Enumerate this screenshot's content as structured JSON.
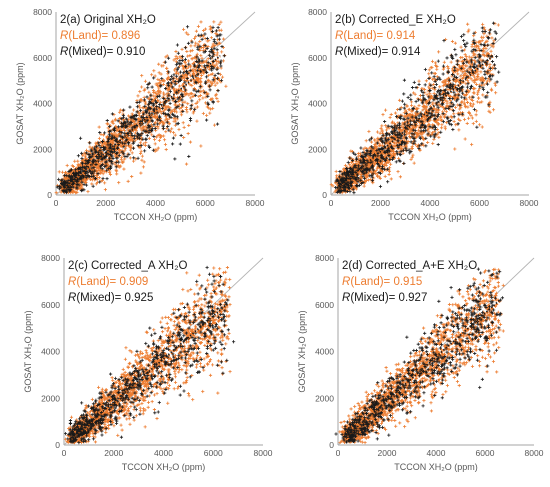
{
  "colors": {
    "land": "#ed7d31",
    "land_trend": "#c55a11",
    "mixed": "#1a1a1a",
    "axis": "#a6a6a6",
    "tick_text": "#595959",
    "one_to_one": "#b4b4b4"
  },
  "chart_data": [
    {
      "type": "scatter",
      "title": "2(a) Original XH₂O",
      "xlabel": "TCCON XH₂O (ppm)",
      "ylabel": "GOSAT XH₂O (ppm)",
      "xlim": [
        0,
        8000
      ],
      "ylim": [
        0,
        8000
      ],
      "xticks": [
        "0",
        "2000",
        "4000",
        "6000",
        "8000"
      ],
      "yticks": [
        "0",
        "2000",
        "4000",
        "6000",
        "8000"
      ],
      "r_land_label": "(Land)= 0.896",
      "r_land": 0.896,
      "r_mixed_label": "(Mixed)= 0.910",
      "r_mixed": 0.91,
      "r_symbol": "R",
      "series": [
        {
          "name": "Land",
          "marker": "orange-cross",
          "trendline": {
            "x": [
              300,
              6600
            ],
            "y": [
              250,
              6050
            ]
          }
        },
        {
          "name": "Mixed",
          "marker": "black-cross",
          "trendline": {
            "x": [
              300,
              6600
            ],
            "y": [
              300,
              6100
            ]
          }
        }
      ],
      "reference_line": {
        "x": [
          0,
          8000
        ],
        "y": [
          0,
          8000
        ]
      }
    },
    {
      "type": "scatter",
      "title": "2(b) Corrected_E XH₂O",
      "xlabel": "TCCON XH₂O (ppm)",
      "ylabel": "GOSAT XH₂O (ppm)",
      "xlim": [
        0,
        8000
      ],
      "ylim": [
        0,
        8000
      ],
      "xticks": [
        "0",
        "2000",
        "4000",
        "6000",
        "8000"
      ],
      "yticks": [
        "0",
        "2000",
        "4000",
        "6000",
        "8000"
      ],
      "r_land_label": "(Land)= 0.914",
      "r_land": 0.914,
      "r_mixed_label": "(Mixed)= 0.914",
      "r_mixed": 0.914,
      "r_symbol": "R",
      "series": [
        {
          "name": "Land",
          "marker": "orange-cross",
          "trendline": {
            "x": [
              300,
              6600
            ],
            "y": [
              300,
              6100
            ]
          }
        },
        {
          "name": "Mixed",
          "marker": "black-cross",
          "trendline": {
            "x": [
              300,
              6600
            ],
            "y": [
              330,
              6150
            ]
          }
        }
      ],
      "reference_line": {
        "x": [
          0,
          8000
        ],
        "y": [
          0,
          8000
        ]
      }
    },
    {
      "type": "scatter",
      "title": "2(c) Corrected_A XH₂O",
      "xlabel": "TCCON XH₂O (ppm)",
      "ylabel": "GOSAT XH₂O (ppm)",
      "xlim": [
        0,
        8000
      ],
      "ylim": [
        0,
        8000
      ],
      "xticks": [
        "0",
        "2000",
        "4000",
        "6000",
        "8000"
      ],
      "yticks": [
        "0",
        "2000",
        "4000",
        "6000",
        "8000"
      ],
      "r_land_label": "(Land)= 0.909",
      "r_land": 0.909,
      "r_mixed_label": "(Mixed)= 0.925",
      "r_mixed": 0.925,
      "r_symbol": "R",
      "series": [
        {
          "name": "Land",
          "marker": "orange-cross",
          "trendline": {
            "x": [
              300,
              6600
            ],
            "y": [
              250,
              6000
            ]
          }
        },
        {
          "name": "Mixed",
          "marker": "black-cross",
          "trendline": {
            "x": [
              300,
              6600
            ],
            "y": [
              280,
              6080
            ]
          }
        }
      ],
      "reference_line": {
        "x": [
          0,
          8000
        ],
        "y": [
          0,
          8000
        ]
      }
    },
    {
      "type": "scatter",
      "title": "2(d) Corrected_A+E  XH₂O",
      "xlabel": "TCCON XH₂O (ppm)",
      "ylabel": "GOSAT XH₂O (ppm)",
      "xlim": [
        0,
        8000
      ],
      "ylim": [
        0,
        8000
      ],
      "xticks": [
        "0",
        "2000",
        "4000",
        "6000",
        "8000"
      ],
      "yticks": [
        "0",
        "2000",
        "4000",
        "6000",
        "8000"
      ],
      "r_land_label": "(Land)= 0.915",
      "r_land": 0.915,
      "r_mixed_label": "(Mixed)= 0.927",
      "r_mixed": 0.927,
      "r_symbol": "R",
      "series": [
        {
          "name": "Land",
          "marker": "orange-cross",
          "trendline": {
            "x": [
              300,
              6600
            ],
            "y": [
              300,
              6150
            ]
          }
        },
        {
          "name": "Mixed",
          "marker": "black-cross",
          "trendline": {
            "x": [
              300,
              6600
            ],
            "y": [
              320,
              6200
            ]
          }
        }
      ],
      "reference_line": {
        "x": [
          0,
          8000
        ],
        "y": [
          0,
          8000
        ]
      }
    }
  ]
}
